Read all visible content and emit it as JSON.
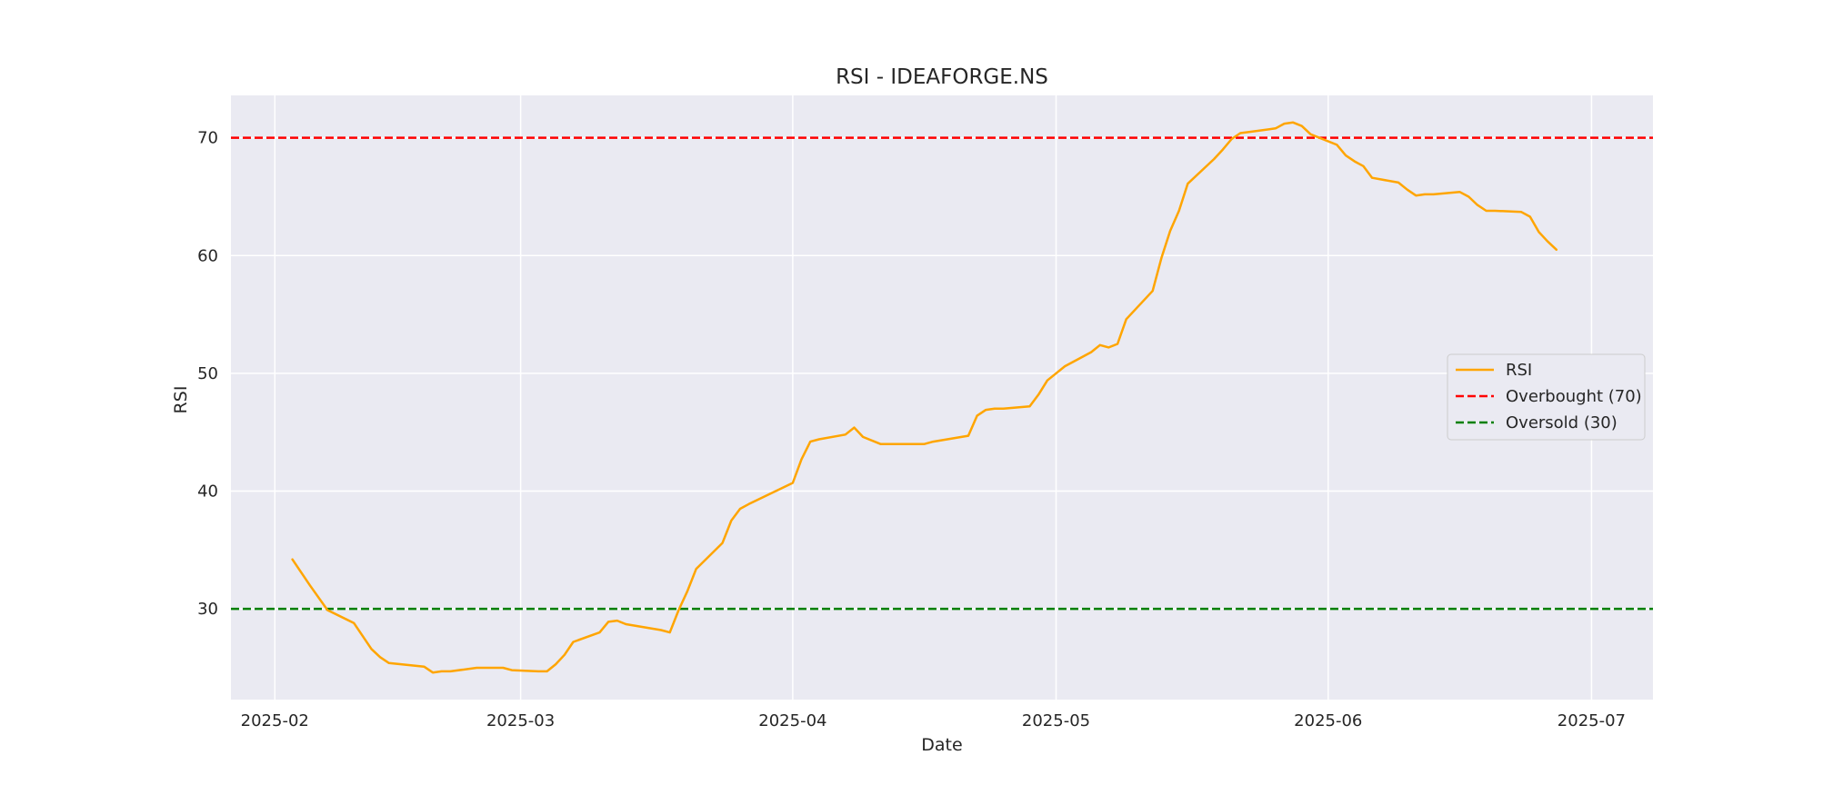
{
  "chart_data": {
    "type": "line",
    "title": "RSI - IDEAFORGE.NS",
    "xlabel": "Date",
    "ylabel": "RSI",
    "ylim": [
      22.3,
      73.6
    ],
    "xlim": [
      "2025-01-27",
      "2025-07-08"
    ],
    "x_ticks": [
      "2025-02-01",
      "2025-03-01",
      "2025-04-01",
      "2025-05-01",
      "2025-06-01",
      "2025-07-01"
    ],
    "x_tick_labels": [
      "2025-02",
      "2025-03",
      "2025-04",
      "2025-05",
      "2025-06",
      "2025-07"
    ],
    "y_ticks": [
      30,
      40,
      50,
      60,
      70
    ],
    "y_tick_labels": [
      "30",
      "40",
      "50",
      "60",
      "70"
    ],
    "grid": true,
    "legend_position": "center-right",
    "colors": {
      "rsi": "#FFA500",
      "overbought": "#FF0000",
      "oversold": "#008000",
      "plot_bg": "#EAEAF2",
      "grid": "#FFFFFF"
    },
    "series": [
      {
        "name": "RSI",
        "x": [
          "2025-02-03",
          "2025-02-05",
          "2025-02-07",
          "2025-02-10",
          "2025-02-12",
          "2025-02-13",
          "2025-02-14",
          "2025-02-18",
          "2025-02-19",
          "2025-02-20",
          "2025-02-21",
          "2025-02-24",
          "2025-02-25",
          "2025-02-27",
          "2025-02-28",
          "2025-03-03",
          "2025-03-04",
          "2025-03-05",
          "2025-03-06",
          "2025-03-07",
          "2025-03-10",
          "2025-03-11",
          "2025-03-12",
          "2025-03-13",
          "2025-03-17",
          "2025-03-18",
          "2025-03-19",
          "2025-03-20",
          "2025-03-21",
          "2025-03-24",
          "2025-03-25",
          "2025-03-26",
          "2025-03-27",
          "2025-04-01",
          "2025-04-02",
          "2025-04-03",
          "2025-04-04",
          "2025-04-07",
          "2025-04-08",
          "2025-04-09",
          "2025-04-11",
          "2025-04-15",
          "2025-04-16",
          "2025-04-17",
          "2025-04-21",
          "2025-04-22",
          "2025-04-23",
          "2025-04-24",
          "2025-04-25",
          "2025-04-28",
          "2025-04-29",
          "2025-04-30",
          "2025-05-02",
          "2025-05-05",
          "2025-05-06",
          "2025-05-07",
          "2025-05-08",
          "2025-05-09",
          "2025-05-12",
          "2025-05-13",
          "2025-05-14",
          "2025-05-15",
          "2025-05-16",
          "2025-05-19",
          "2025-05-20",
          "2025-05-21",
          "2025-05-22",
          "2025-05-23",
          "2025-05-26",
          "2025-05-27",
          "2025-05-28",
          "2025-05-29",
          "2025-05-30",
          "2025-06-02",
          "2025-06-03",
          "2025-06-04",
          "2025-06-05",
          "2025-06-06",
          "2025-06-09",
          "2025-06-10",
          "2025-06-11",
          "2025-06-12",
          "2025-06-13",
          "2025-06-16",
          "2025-06-17",
          "2025-06-18",
          "2025-06-19",
          "2025-06-20",
          "2025-06-23",
          "2025-06-24",
          "2025-06-25",
          "2025-06-26",
          "2025-06-27"
        ],
        "values": [
          34.2,
          32.0,
          29.9,
          28.8,
          26.6,
          25.9,
          25.4,
          25.1,
          24.6,
          24.7,
          24.7,
          25.0,
          25.0,
          25.0,
          24.8,
          24.7,
          24.7,
          25.3,
          26.1,
          27.2,
          28.0,
          28.9,
          29.0,
          28.7,
          28.2,
          28.0,
          29.9,
          31.5,
          33.4,
          35.6,
          37.5,
          38.5,
          38.9,
          40.7,
          42.7,
          44.2,
          44.4,
          44.8,
          45.4,
          44.6,
          44.0,
          44.0,
          44.0,
          44.2,
          44.7,
          46.4,
          46.9,
          47.0,
          47.0,
          47.2,
          48.2,
          49.4,
          50.6,
          51.8,
          52.4,
          52.2,
          52.5,
          54.6,
          57.0,
          59.8,
          62.1,
          63.8,
          66.1,
          68.2,
          69.0,
          69.9,
          70.4,
          70.5,
          70.8,
          71.2,
          71.3,
          71.0,
          70.3,
          69.4,
          68.5,
          68.0,
          67.6,
          66.6,
          66.2,
          65.6,
          65.1,
          65.2,
          65.2,
          65.4,
          65.0,
          64.3,
          63.8,
          63.8,
          63.7,
          63.3,
          62.0,
          61.2,
          60.5
        ]
      },
      {
        "name": "Overbought (70)",
        "y": 70,
        "style": "dashed"
      },
      {
        "name": "Oversold (30)",
        "y": 30,
        "style": "dashed"
      }
    ]
  }
}
